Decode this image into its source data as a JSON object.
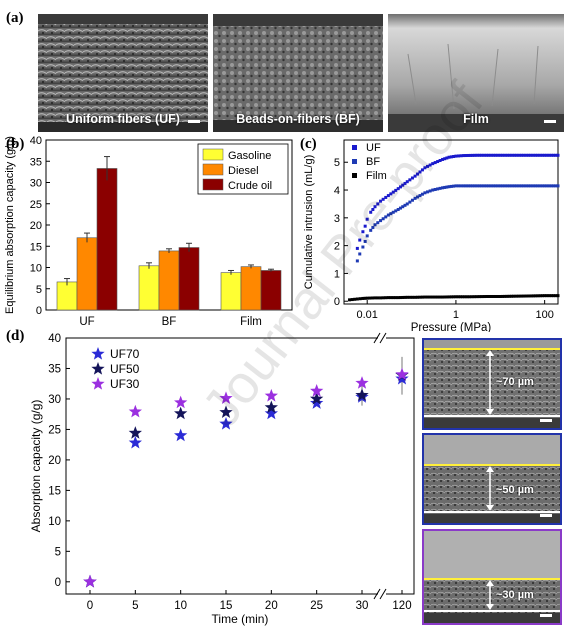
{
  "panel_a": {
    "label": "(a)",
    "images": [
      {
        "caption": "Uniform fibers (UF)"
      },
      {
        "caption": "Beads-on-fibers (BF)"
      },
      {
        "caption": "Film"
      }
    ]
  },
  "watermark": "Journal Pre-proof",
  "chart_data": [
    {
      "panel": "(b)",
      "type": "bar",
      "categories": [
        "UF",
        "BF",
        "Film"
      ],
      "series": [
        {
          "name": "Gasoline",
          "values": [
            6.6,
            10.4,
            8.8
          ],
          "errors": [
            0.8,
            0.7,
            0.5
          ],
          "color": "#ffff33"
        },
        {
          "name": "Diesel",
          "values": [
            17.0,
            13.9,
            10.2
          ],
          "errors": [
            1.1,
            0.5,
            0.4
          ],
          "color": "#ff8800"
        },
        {
          "name": "Crude oil",
          "values": [
            33.3,
            14.7,
            9.3
          ],
          "errors": [
            2.8,
            1.0,
            0.3
          ],
          "color": "#8b0000"
        }
      ],
      "ylabel": "Equilibrium absorption capacity (g/g)",
      "ylim": [
        0,
        40
      ],
      "yticks": [
        "0",
        "5",
        "10",
        "15",
        "20",
        "25",
        "30",
        "35",
        "40"
      ],
      "legend_position": "top-right"
    },
    {
      "panel": "(c)",
      "type": "scatter",
      "xscale": "log",
      "xlabel": "Pressure (MPa)",
      "ylabel": "Cumulative intrusion (mL/g)",
      "xlim": [
        0.003,
        200
      ],
      "ylim": [
        -0.1,
        5.8
      ],
      "xticks": [
        {
          "value": 0.01,
          "label": "0.01"
        },
        {
          "value": 1,
          "label": "1"
        },
        {
          "value": 100,
          "label": "100"
        }
      ],
      "yticks": [
        "0",
        "1",
        "2",
        "3",
        "4",
        "5"
      ],
      "series": [
        {
          "name": "UF",
          "color": "#1a1acd",
          "x": [
            0.006,
            0.0068,
            0.008,
            0.009,
            0.01,
            0.012,
            0.015,
            0.02,
            0.03,
            0.05,
            0.08,
            0.12,
            0.2,
            0.3,
            0.5,
            0.7,
            1,
            1.5,
            3,
            10,
            30,
            100,
            200
          ],
          "y": [
            1.9,
            2.2,
            2.5,
            2.7,
            2.95,
            3.2,
            3.4,
            3.6,
            3.8,
            4.05,
            4.3,
            4.5,
            4.8,
            4.95,
            5.1,
            5.18,
            5.22,
            5.24,
            5.25,
            5.25,
            5.25,
            5.25,
            5.25
          ]
        },
        {
          "name": "BF",
          "color": "#1e3ab4",
          "x": [
            0.006,
            0.0068,
            0.008,
            0.009,
            0.01,
            0.012,
            0.015,
            0.02,
            0.03,
            0.05,
            0.08,
            0.12,
            0.2,
            0.3,
            0.5,
            0.7,
            1,
            1.5,
            3,
            10,
            30,
            100,
            200
          ],
          "y": [
            1.45,
            1.7,
            1.95,
            2.15,
            2.35,
            2.55,
            2.75,
            2.9,
            3.1,
            3.3,
            3.5,
            3.7,
            3.9,
            4.0,
            4.08,
            4.12,
            4.15,
            4.15,
            4.15,
            4.15,
            4.15,
            4.15,
            4.15
          ]
        },
        {
          "name": "Film",
          "color": "#000000",
          "x": [
            0.004,
            0.006,
            0.008,
            0.01,
            0.015,
            0.02,
            0.03,
            0.05,
            0.08,
            0.12,
            0.2,
            0.3,
            0.5,
            1,
            2,
            5,
            10,
            20,
            50,
            100,
            200
          ],
          "y": [
            0.05,
            0.08,
            0.1,
            0.11,
            0.12,
            0.12,
            0.13,
            0.13,
            0.14,
            0.14,
            0.15,
            0.15,
            0.15,
            0.16,
            0.16,
            0.17,
            0.17,
            0.18,
            0.19,
            0.2,
            0.2
          ]
        }
      ],
      "legend_position": "top-left"
    },
    {
      "panel": "(d)",
      "type": "scatter",
      "xlabel": "Time (min)",
      "ylabel": "Absorption capacity (g/g)",
      "ylim": [
        -2,
        40
      ],
      "yticks": [
        "0",
        "5",
        "10",
        "15",
        "20",
        "25",
        "30",
        "35",
        "40"
      ],
      "xticks": [
        "0",
        "5",
        "10",
        "15",
        "20",
        "25",
        "30",
        "120"
      ],
      "x": [
        0,
        5,
        10,
        15,
        20,
        25,
        30,
        120
      ],
      "series": [
        {
          "name": "UF70",
          "color": "#2b2bd6",
          "values": [
            0,
            22.8,
            24.0,
            25.9,
            27.6,
            29.3,
            30.3,
            33.3
          ]
        },
        {
          "name": "UF50",
          "color": "#14145a",
          "values": [
            0,
            24.4,
            27.6,
            27.8,
            28.6,
            30.0,
            30.6,
            33.9
          ]
        },
        {
          "name": "UF30",
          "color": "#9b30e0",
          "values": [
            0,
            27.9,
            29.4,
            30.1,
            30.5,
            31.3,
            32.6,
            34.0
          ]
        }
      ],
      "legend_position": "top-left"
    }
  ],
  "panel_d_images": [
    {
      "label": "~70 µm",
      "border": "#2233aa"
    },
    {
      "label": "~50 µm",
      "border": "#2233aa"
    },
    {
      "label": "~30 µm",
      "border": "#8a3ac8"
    }
  ]
}
